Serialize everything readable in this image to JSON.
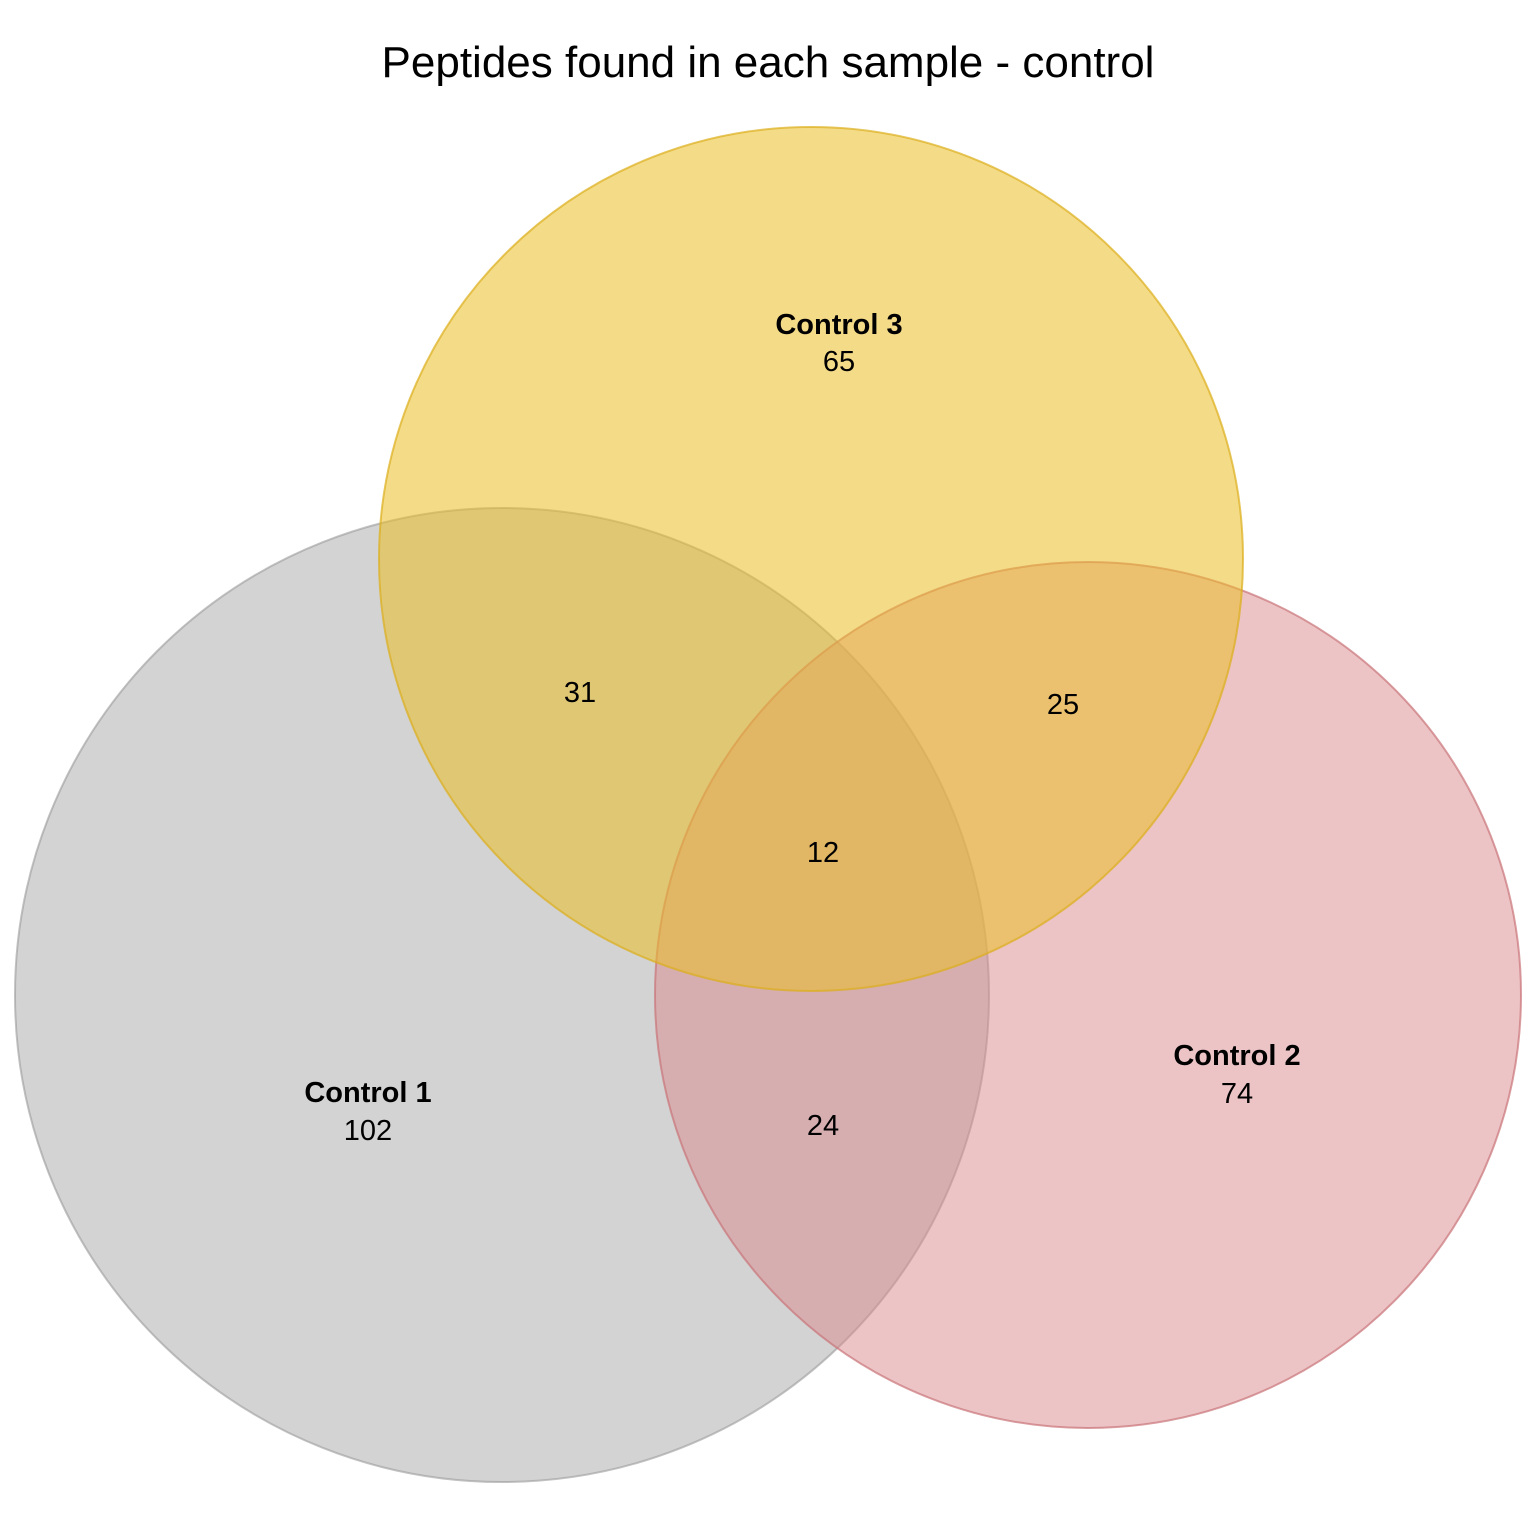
{
  "title": "Peptides found in each sample - control",
  "sets": [
    {
      "key": "c1",
      "label": "Control 1",
      "only": "102",
      "color": "#a8a8a8"
    },
    {
      "key": "c2",
      "label": "Control 2",
      "only": "74",
      "color": "#d98a8d"
    },
    {
      "key": "c3",
      "label": "Control 3",
      "only": "65",
      "color": "#ebbd27"
    }
  ],
  "intersections": {
    "c1_c3": "31",
    "c2_c3": "25",
    "c1_c2": "24",
    "c1_c2_c3": "12"
  }
}
